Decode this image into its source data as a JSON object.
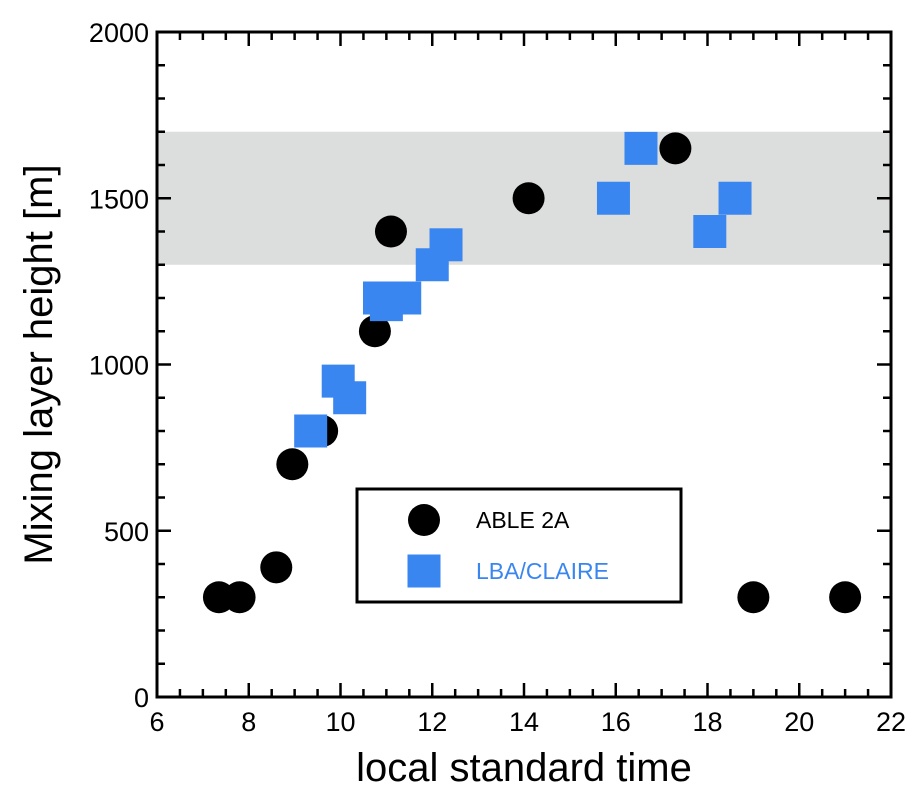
{
  "chart_data": {
    "type": "scatter",
    "title": "",
    "xlabel": "local standard time",
    "ylabel": "Mixing layer height [m]",
    "xlim": [
      6,
      22
    ],
    "ylim": [
      0,
      2000
    ],
    "x_ticks": [
      6,
      8,
      10,
      12,
      14,
      16,
      18,
      20,
      22
    ],
    "x_tick_labels": [
      "6",
      "8",
      "10",
      "12",
      "14",
      "16",
      "18",
      "20",
      "22"
    ],
    "y_ticks": [
      0,
      500,
      1000,
      1500,
      2000
    ],
    "y_tick_labels": [
      "0",
      "500",
      "1000",
      "1500",
      "2000"
    ],
    "grid": false,
    "legend_position": "bottom-center",
    "shaded_band": {
      "y_from": 1300,
      "y_to": 1700,
      "color": "#dcdddd"
    },
    "series": [
      {
        "name": "ABLE 2A",
        "marker": "circle",
        "color": "#000000",
        "points": [
          {
            "x": 7.35,
            "y": 300
          },
          {
            "x": 7.8,
            "y": 300
          },
          {
            "x": 8.6,
            "y": 390
          },
          {
            "x": 8.95,
            "y": 700
          },
          {
            "x": 9.6,
            "y": 800
          },
          {
            "x": 10.75,
            "y": 1100
          },
          {
            "x": 11.1,
            "y": 1400
          },
          {
            "x": 14.1,
            "y": 1500
          },
          {
            "x": 17.3,
            "y": 1650
          },
          {
            "x": 19.0,
            "y": 300
          },
          {
            "x": 21.0,
            "y": 300
          }
        ]
      },
      {
        "name": "LBA/CLAIRE",
        "marker": "square",
        "color": "#3a86f0",
        "points": [
          {
            "x": 9.35,
            "y": 800
          },
          {
            "x": 9.95,
            "y": 950
          },
          {
            "x": 10.2,
            "y": 900
          },
          {
            "x": 10.85,
            "y": 1200
          },
          {
            "x": 11.0,
            "y": 1180
          },
          {
            "x": 11.4,
            "y": 1200
          },
          {
            "x": 12.0,
            "y": 1300
          },
          {
            "x": 12.3,
            "y": 1360
          },
          {
            "x": 15.95,
            "y": 1500
          },
          {
            "x": 16.55,
            "y": 1650
          },
          {
            "x": 18.05,
            "y": 1400
          },
          {
            "x": 18.6,
            "y": 1500
          }
        ]
      }
    ]
  }
}
